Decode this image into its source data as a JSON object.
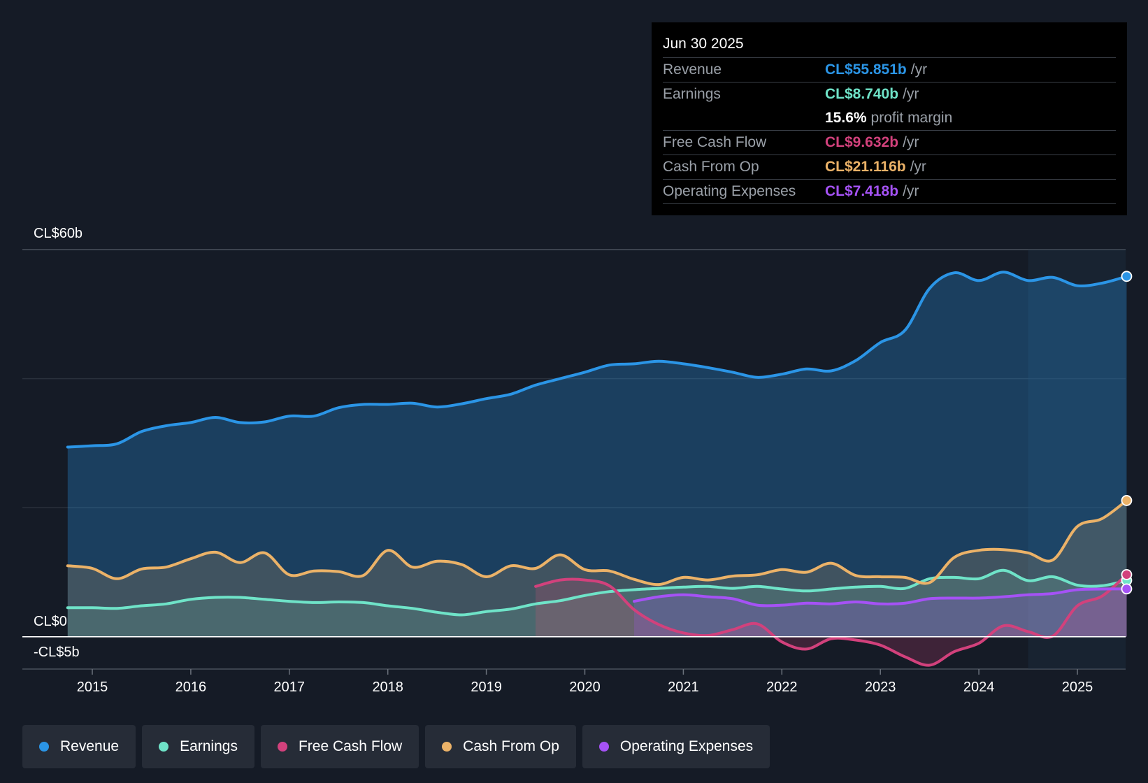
{
  "tooltip": {
    "date": "Jun 30 2025",
    "rows": [
      {
        "name": "Revenue",
        "value": "CL$55.851b",
        "unit": "/yr",
        "color": "#2b95e6"
      },
      {
        "name": "Earnings",
        "value": "CL$8.740b",
        "unit": "/yr",
        "color": "#6fe3c8"
      },
      {
        "name": "",
        "value": "15.6%",
        "unit": "profit margin",
        "color": "#ffffff"
      },
      {
        "name": "Free Cash Flow",
        "value": "CL$9.632b",
        "unit": "/yr",
        "color": "#d2417c"
      },
      {
        "name": "Cash From Op",
        "value": "CL$21.116b",
        "unit": "/yr",
        "color": "#ebb268"
      },
      {
        "name": "Operating Expenses",
        "value": "CL$7.418b",
        "unit": "/yr",
        "color": "#a552f5"
      }
    ]
  },
  "legend": [
    {
      "label": "Revenue",
      "color": "#2b95e6"
    },
    {
      "label": "Earnings",
      "color": "#6fe3c8"
    },
    {
      "label": "Free Cash Flow",
      "color": "#d2417c"
    },
    {
      "label": "Cash From Op",
      "color": "#ebb268"
    },
    {
      "label": "Operating Expenses",
      "color": "#a552f5"
    }
  ],
  "chart_data": {
    "type": "area",
    "title": "",
    "xlabel": "",
    "ylabel": "",
    "ylim": [
      -5,
      60
    ],
    "y_tick_labels": [
      "CL$60b",
      "CL$0",
      "-CL$5b"
    ],
    "x_tick_labels": [
      "2015",
      "2016",
      "2017",
      "2018",
      "2019",
      "2020",
      "2021",
      "2022",
      "2023",
      "2024",
      "2025"
    ],
    "x_tick_values": [
      2015,
      2016,
      2017,
      2018,
      2019,
      2020,
      2021,
      2022,
      2023,
      2024,
      2025
    ],
    "x_range": [
      2014.3,
      2025.5
    ],
    "forecast_shade_start": 2024.5,
    "series": [
      {
        "name": "Revenue",
        "color": "#2b95e6",
        "x": [
          2014.75,
          2015,
          2015.25,
          2015.5,
          2015.75,
          2016,
          2016.25,
          2016.5,
          2016.75,
          2017,
          2017.25,
          2017.5,
          2017.75,
          2018,
          2018.25,
          2018.5,
          2018.75,
          2019,
          2019.25,
          2019.5,
          2019.75,
          2020,
          2020.25,
          2020.5,
          2020.75,
          2021,
          2021.25,
          2021.5,
          2021.75,
          2022,
          2022.25,
          2022.5,
          2022.75,
          2023,
          2023.25,
          2023.5,
          2023.75,
          2024,
          2024.25,
          2024.5,
          2024.75,
          2025,
          2025.25,
          2025.5
        ],
        "values": [
          29.4,
          29.6,
          29.9,
          31.8,
          32.7,
          33.2,
          34.0,
          33.2,
          33.3,
          34.2,
          34.2,
          35.5,
          36.0,
          36.0,
          36.2,
          35.6,
          36.1,
          36.9,
          37.6,
          39.0,
          40.0,
          41.0,
          42.1,
          42.3,
          42.7,
          42.3,
          41.7,
          41.0,
          40.2,
          40.7,
          41.5,
          41.2,
          42.8,
          45.6,
          47.5,
          54.0,
          56.4,
          55.2,
          56.5,
          55.2,
          55.7,
          54.4,
          54.8,
          55.851
        ]
      },
      {
        "name": "Earnings",
        "color": "#6fe3c8",
        "x": [
          2014.75,
          2015,
          2015.25,
          2015.5,
          2015.75,
          2016,
          2016.25,
          2016.5,
          2016.75,
          2017,
          2017.25,
          2017.5,
          2017.75,
          2018,
          2018.25,
          2018.5,
          2018.75,
          2019,
          2019.25,
          2019.5,
          2019.75,
          2020,
          2020.25,
          2020.5,
          2020.75,
          2021,
          2021.25,
          2021.5,
          2021.75,
          2022,
          2022.25,
          2022.5,
          2022.75,
          2023,
          2023.25,
          2023.5,
          2023.75,
          2024,
          2024.25,
          2024.5,
          2024.75,
          2025,
          2025.25,
          2025.5
        ],
        "values": [
          4.5,
          4.5,
          4.4,
          4.8,
          5.1,
          5.8,
          6.1,
          6.1,
          5.8,
          5.5,
          5.3,
          5.4,
          5.3,
          4.8,
          4.4,
          3.8,
          3.4,
          3.9,
          4.3,
          5.1,
          5.6,
          6.4,
          7.0,
          7.3,
          7.5,
          7.7,
          7.8,
          7.5,
          7.8,
          7.4,
          7.1,
          7.4,
          7.7,
          7.8,
          7.5,
          9.0,
          9.2,
          9.0,
          10.3,
          8.7,
          9.3,
          8.0,
          7.9,
          8.74
        ]
      },
      {
        "name": "Free Cash Flow",
        "color": "#d2417c",
        "x": [
          2019.5,
          2019.75,
          2020,
          2020.25,
          2020.5,
          2020.75,
          2021,
          2021.25,
          2021.5,
          2021.75,
          2022,
          2022.25,
          2022.5,
          2022.75,
          2023,
          2023.25,
          2023.5,
          2023.75,
          2024,
          2024.25,
          2024.5,
          2024.75,
          2025,
          2025.25,
          2025.5
        ],
        "values": [
          7.8,
          8.8,
          8.8,
          7.9,
          4.2,
          1.9,
          0.6,
          0.2,
          1.1,
          2.0,
          -0.8,
          -1.9,
          -0.3,
          -0.5,
          -1.3,
          -3.1,
          -4.4,
          -2.3,
          -1.0,
          1.7,
          0.8,
          0.1,
          4.8,
          6.3,
          9.632
        ]
      },
      {
        "name": "Cash From Op",
        "color": "#ebb268",
        "x": [
          2014.75,
          2015,
          2015.25,
          2015.5,
          2015.75,
          2016,
          2016.25,
          2016.5,
          2016.75,
          2017,
          2017.25,
          2017.5,
          2017.75,
          2018,
          2018.25,
          2018.5,
          2018.75,
          2019,
          2019.25,
          2019.5,
          2019.75,
          2020,
          2020.25,
          2020.5,
          2020.75,
          2021,
          2021.25,
          2021.5,
          2021.75,
          2022,
          2022.25,
          2022.5,
          2022.75,
          2023,
          2023.25,
          2023.5,
          2023.75,
          2024,
          2024.25,
          2024.5,
          2024.75,
          2025,
          2025.25,
          2025.5
        ],
        "values": [
          11.0,
          10.6,
          9.0,
          10.5,
          10.8,
          12.1,
          13.1,
          11.5,
          13.0,
          9.6,
          10.2,
          10.1,
          9.5,
          13.4,
          10.8,
          11.7,
          11.2,
          9.3,
          11.0,
          10.6,
          12.7,
          10.4,
          10.2,
          8.9,
          8.1,
          9.2,
          8.8,
          9.4,
          9.6,
          10.4,
          10.0,
          11.4,
          9.5,
          9.3,
          9.2,
          8.4,
          12.3,
          13.4,
          13.5,
          13.0,
          11.9,
          17.1,
          18.3,
          21.116
        ]
      },
      {
        "name": "Operating Expenses",
        "color": "#a552f5",
        "x": [
          2020.5,
          2020.75,
          2021,
          2021.25,
          2021.5,
          2021.75,
          2022,
          2022.25,
          2022.5,
          2022.75,
          2023,
          2023.25,
          2023.5,
          2023.75,
          2024,
          2024.25,
          2024.5,
          2024.75,
          2025,
          2025.25,
          2025.5
        ],
        "values": [
          5.5,
          6.2,
          6.5,
          6.2,
          5.9,
          4.9,
          4.9,
          5.2,
          5.1,
          5.4,
          5.1,
          5.2,
          5.9,
          6.0,
          6.0,
          6.2,
          6.5,
          6.7,
          7.3,
          7.4,
          7.418
        ]
      }
    ]
  }
}
